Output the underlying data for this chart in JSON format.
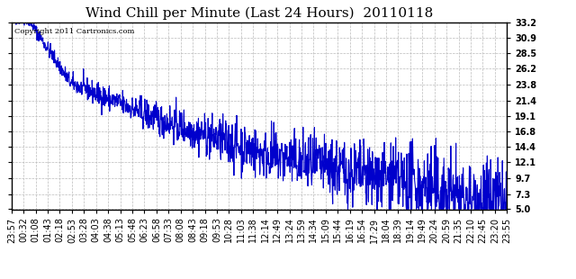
{
  "title": "Wind Chill per Minute (Last 24 Hours)  20110118",
  "copyright_text": "Copyright 2011 Cartronics.com",
  "ylim": [
    5.0,
    33.2
  ],
  "yticks": [
    5.0,
    7.3,
    9.7,
    12.1,
    14.4,
    16.8,
    19.1,
    21.4,
    23.8,
    26.2,
    28.5,
    30.9,
    33.2
  ],
  "line_color": "#0000cc",
  "bg_color": "#ffffff",
  "grid_color": "#bbbbbb",
  "title_fontsize": 11,
  "tick_fontsize": 7,
  "x_tick_labels": [
    "23:57",
    "00:32",
    "01:08",
    "01:43",
    "02:18",
    "02:53",
    "03:28",
    "04:03",
    "04:38",
    "05:13",
    "05:48",
    "06:23",
    "06:58",
    "07:33",
    "08:08",
    "08:43",
    "09:18",
    "09:53",
    "10:28",
    "11:03",
    "11:38",
    "12:14",
    "12:49",
    "13:24",
    "13:59",
    "14:34",
    "15:09",
    "15:44",
    "16:19",
    "16:54",
    "17:29",
    "18:04",
    "18:39",
    "19:14",
    "19:49",
    "20:24",
    "20:59",
    "21:35",
    "22:10",
    "22:45",
    "23:20",
    "23:55"
  ],
  "num_points": 1440
}
